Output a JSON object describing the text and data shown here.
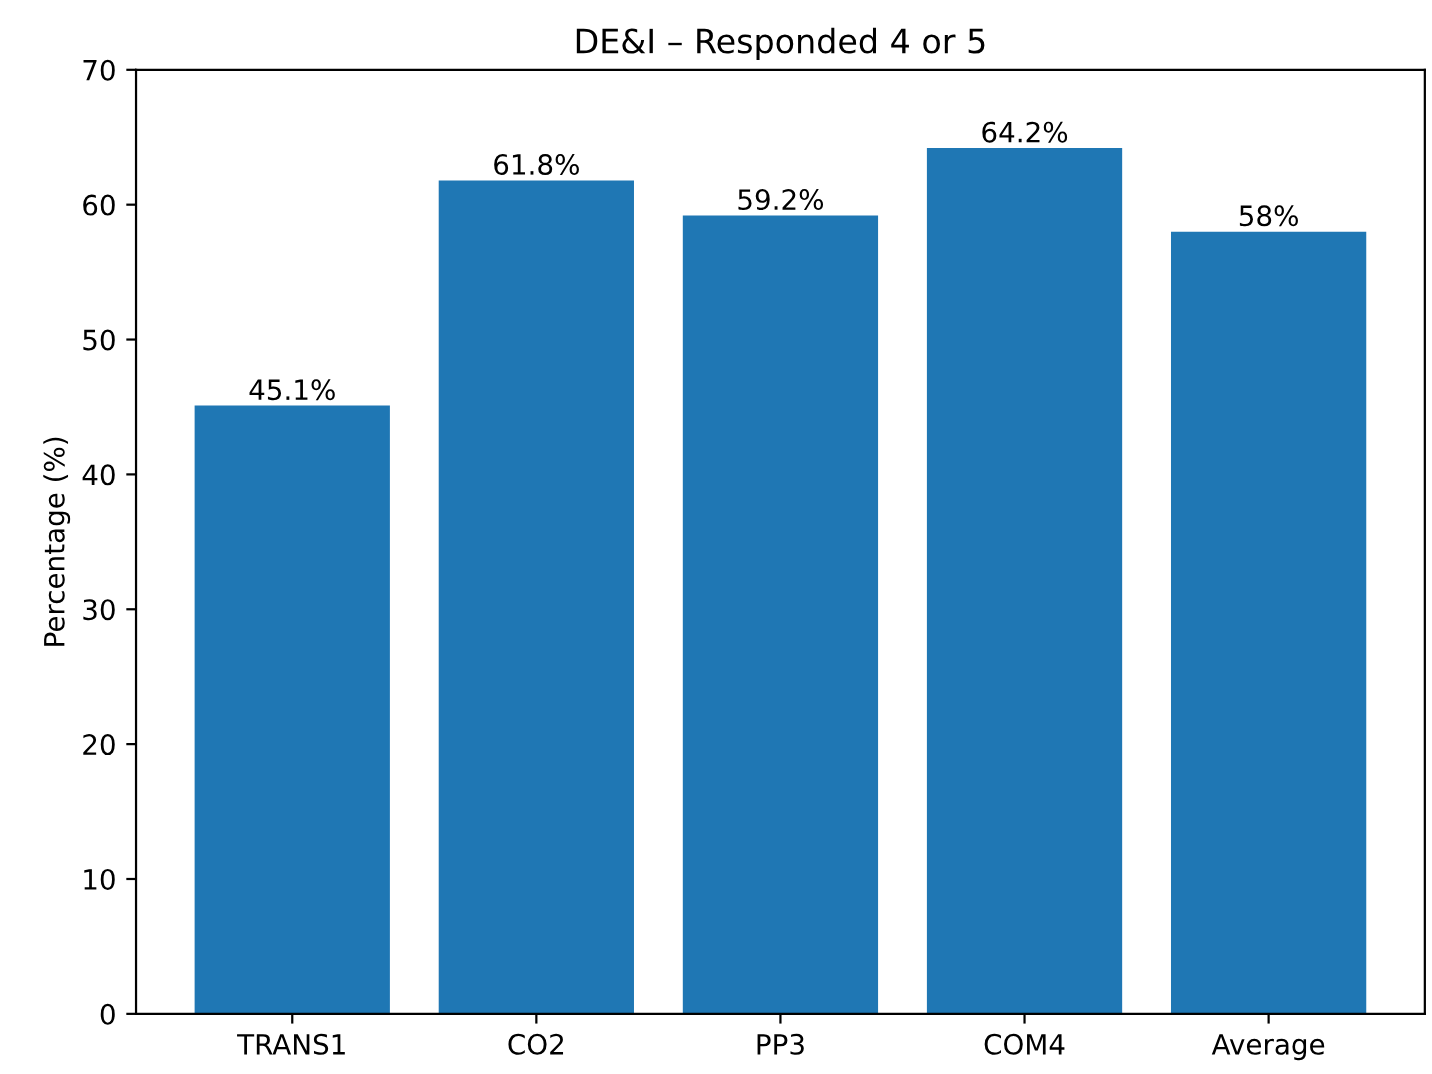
{
  "chart_data": {
    "type": "bar",
    "title": "DE&I – Responded 4 or 5",
    "ylabel": "Percentage (%)",
    "categories": [
      "TRANS1",
      "CO2",
      "PP3",
      "COM4",
      "Average"
    ],
    "values": [
      45.1,
      61.8,
      59.2,
      64.2,
      58
    ],
    "value_labels": [
      "45.1%",
      "61.8%",
      "59.2%",
      "64.2%",
      "58%"
    ],
    "color": "#1f77b4",
    "ylim": [
      0,
      70
    ],
    "yticks": [
      0,
      10,
      20,
      30,
      40,
      50,
      60,
      70
    ],
    "grid": false,
    "legend": false
  }
}
